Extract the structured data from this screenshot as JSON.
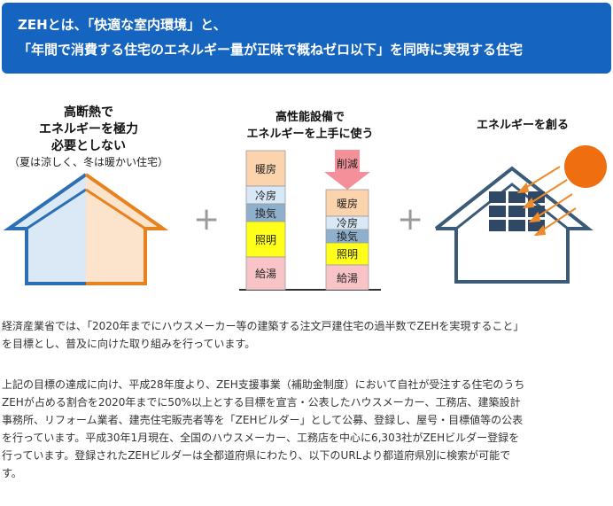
{
  "banner": {
    "line1": "ZEHとは、「快適な室内環境」と、",
    "line2": "「年間で消費する住宅のエネルギー量が正味で概ねゼロ以下」を同時に実現する住宅"
  },
  "insulation": {
    "title_lines": [
      "高断熱で",
      "エネルギーを極力",
      "必要としない"
    ],
    "note": "（夏は涼しく、冬は暖かい住宅）",
    "colors": {
      "cool": "#2d6fb5",
      "warm": "#e8821e",
      "cool_fill": "#dbe9f7",
      "warm_fill": "#fbe3cc"
    }
  },
  "equipment": {
    "title_lines": [
      "高性能設備で",
      "エネルギーを上手に使う"
    ],
    "reduce_label": "削減",
    "before": [
      "暖房",
      "冷房",
      "換気",
      "照明",
      "給湯"
    ],
    "after": [
      "暖房",
      "冷房",
      "換気",
      "照明",
      "給湯"
    ]
  },
  "generation": {
    "title": "エネルギーを創る"
  },
  "plus_sign": "+",
  "paragraphs": [
    [
      "経済産業省では、「2020年までにハウスメーカー等の建築する注文戸建住宅の過半数でZEHを実現すること」",
      "を目標とし、普及に向けた取り組みを行っています。"
    ],
    [
      "上記の目標の達成に向け、平成28年度より、ZEH支援事業（補助金制度）において自社が受注する住宅のうち",
      "ZEHが占める割合を2020年までに50%以上とする目標を宣言・公表したハウスメーカー、工務店、建築設計",
      "事務所、リフォーム業者、建売住宅販売者等を「ZEHビルダー」として公募、登録し、屋号・目標値等の公表",
      "を行っています。平成30年1月現在、全国のハウスメーカー、工務店を中心に6,303社がZEHビルダー登録を",
      "行っています。登録されたZEHビルダーは全都道府県にわたり、以下のURLより都道府県別に検索が可能で",
      "す。"
    ]
  ]
}
